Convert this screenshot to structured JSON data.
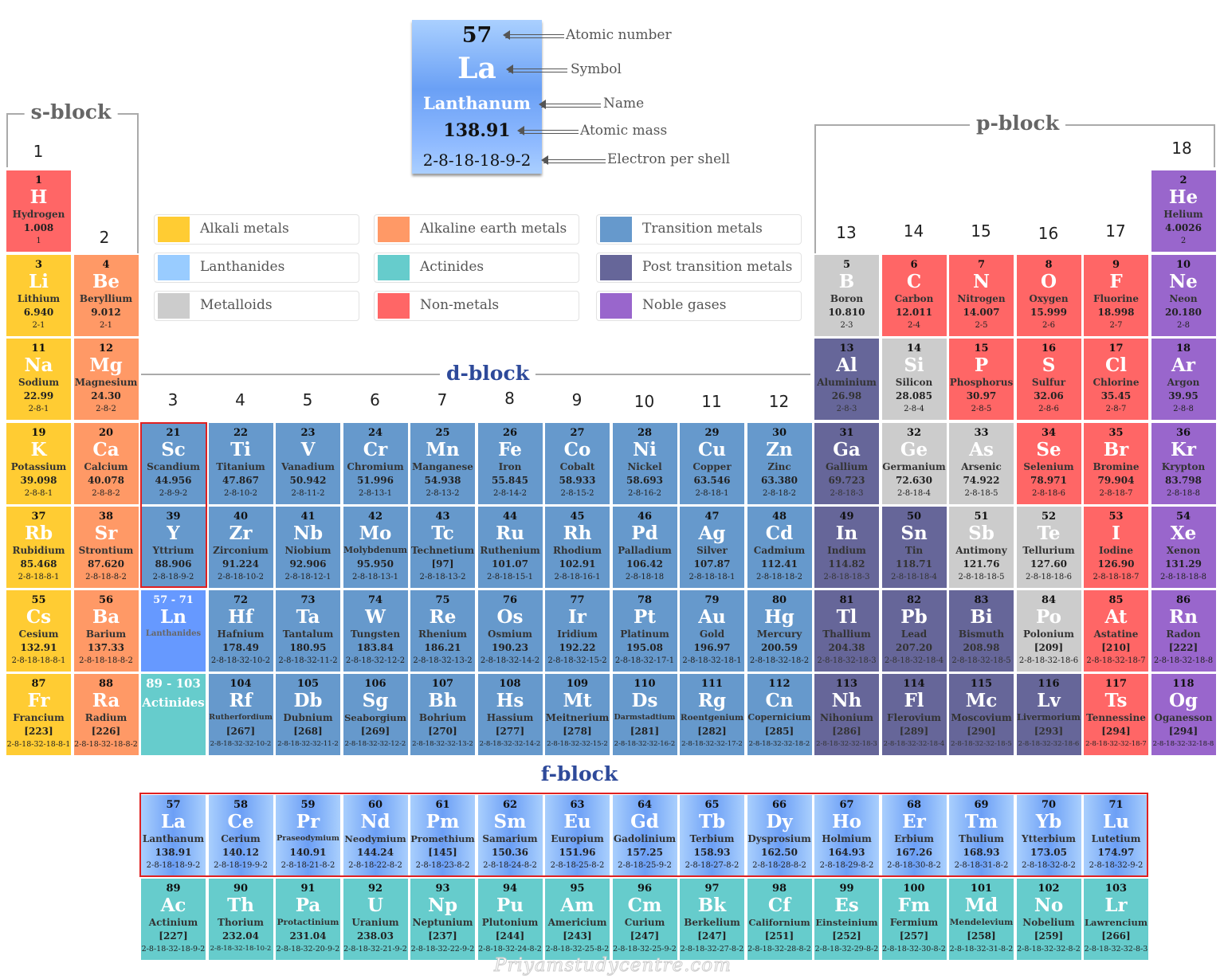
{
  "key": {
    "number": "57",
    "symbol": "La",
    "name": "Lanthanum",
    "mass": "138.91",
    "config": "2-8-18-18-9-2",
    "labels": {
      "number": "Atomic number",
      "symbol": "Symbol",
      "name": "Name",
      "mass": "Atomic mass",
      "config": "Electron per shell"
    }
  },
  "blocks": {
    "s": "s-block",
    "p": "p-block",
    "d": "d-block",
    "f": "f-block"
  },
  "groups": [
    "1",
    "2",
    "3",
    "4",
    "5",
    "6",
    "7",
    "8",
    "9",
    "10",
    "11",
    "12",
    "13",
    "14",
    "15",
    "16",
    "17",
    "18"
  ],
  "legend": [
    {
      "key": "ak",
      "label": "Alkali metals",
      "color": "#FFCC33"
    },
    {
      "key": "ae",
      "label": "Alkaline earth metals",
      "color": "#FF9966"
    },
    {
      "key": "tm",
      "label": "Transition metals",
      "color": "#6699CC"
    },
    {
      "key": "ln",
      "label": "Lanthanides",
      "color": "#99CCFF"
    },
    {
      "key": "an",
      "label": "Actinides",
      "color": "#66CCCC"
    },
    {
      "key": "pt",
      "label": "Post transition metals",
      "color": "#666699"
    },
    {
      "key": "md",
      "label": "Metalloids",
      "color": "#CCCCCC"
    },
    {
      "key": "nm",
      "label": "Non-metals",
      "color": "#FF6666"
    },
    {
      "key": "ng",
      "label": "Noble gases",
      "color": "#9966CC"
    }
  ],
  "placeholders": {
    "lanthanides": {
      "range": "57 - 71",
      "symbol": "Ln",
      "name": "Lanthanides",
      "color": "#6699FF"
    },
    "actinides": {
      "range": "89 - 103",
      "name": "Actinides",
      "color": "#66CCCC"
    }
  },
  "watermark": "Priyamstudycentre.com",
  "elements": [
    {
      "n": 1,
      "s": "H",
      "name": "Hydrogen",
      "m": "1.008",
      "e": "1",
      "cat": "nm"
    },
    {
      "n": 2,
      "s": "He",
      "name": "Helium",
      "m": "4.0026",
      "e": "2",
      "cat": "ng"
    },
    {
      "n": 3,
      "s": "Li",
      "name": "Lithium",
      "m": "6.940",
      "e": "2-1",
      "cat": "ak"
    },
    {
      "n": 4,
      "s": "Be",
      "name": "Beryllium",
      "m": "9.012",
      "e": "2-1",
      "cat": "ae"
    },
    {
      "n": 5,
      "s": "B",
      "name": "Boron",
      "m": "10.810",
      "e": "2-3",
      "cat": "md"
    },
    {
      "n": 6,
      "s": "C",
      "name": "Carbon",
      "m": "12.011",
      "e": "2-4",
      "cat": "nm"
    },
    {
      "n": 7,
      "s": "N",
      "name": "Nitrogen",
      "m": "14.007",
      "e": "2-5",
      "cat": "nm"
    },
    {
      "n": 8,
      "s": "O",
      "name": "Oxygen",
      "m": "15.999",
      "e": "2-6",
      "cat": "nm"
    },
    {
      "n": 9,
      "s": "F",
      "name": "Fluorine",
      "m": "18.998",
      "e": "2-7",
      "cat": "nm"
    },
    {
      "n": 10,
      "s": "Ne",
      "name": "Neon",
      "m": "20.180",
      "e": "2-8",
      "cat": "ng"
    },
    {
      "n": 11,
      "s": "Na",
      "name": "Sodium",
      "m": "22.99",
      "e": "2-8-1",
      "cat": "ak"
    },
    {
      "n": 12,
      "s": "Mg",
      "name": "Magnesium",
      "m": "24.30",
      "e": "2-8-2",
      "cat": "ae"
    },
    {
      "n": 13,
      "s": "Al",
      "name": "Aluminium",
      "m": "26.98",
      "e": "2-8-3",
      "cat": "pt"
    },
    {
      "n": 14,
      "s": "Si",
      "name": "Silicon",
      "m": "28.085",
      "e": "2-8-4",
      "cat": "md"
    },
    {
      "n": 15,
      "s": "P",
      "name": "Phosphorus",
      "m": "30.97",
      "e": "2-8-5",
      "cat": "nm"
    },
    {
      "n": 16,
      "s": "S",
      "name": "Sulfur",
      "m": "32.06",
      "e": "2-8-6",
      "cat": "nm"
    },
    {
      "n": 17,
      "s": "Cl",
      "name": "Chlorine",
      "m": "35.45",
      "e": "2-8-7",
      "cat": "nm"
    },
    {
      "n": 18,
      "s": "Ar",
      "name": "Argon",
      "m": "39.95",
      "e": "2-8-8",
      "cat": "ng"
    },
    {
      "n": 19,
      "s": "K",
      "name": "Potassium",
      "m": "39.098",
      "e": "2-8-8-1",
      "cat": "ak"
    },
    {
      "n": 20,
      "s": "Ca",
      "name": "Calcium",
      "m": "40.078",
      "e": "2-8-8-2",
      "cat": "ae"
    },
    {
      "n": 21,
      "s": "Sc",
      "name": "Scandium",
      "m": "44.956",
      "e": "2-8-9-2",
      "cat": "tm"
    },
    {
      "n": 22,
      "s": "Ti",
      "name": "Titanium",
      "m": "47.867",
      "e": "2-8-10-2",
      "cat": "tm"
    },
    {
      "n": 23,
      "s": "V",
      "name": "Vanadium",
      "m": "50.942",
      "e": "2-8-11-2",
      "cat": "tm"
    },
    {
      "n": 24,
      "s": "Cr",
      "name": "Chromium",
      "m": "51.996",
      "e": "2-8-13-1",
      "cat": "tm"
    },
    {
      "n": 25,
      "s": "Mn",
      "name": "Manganese",
      "m": "54.938",
      "e": "2-8-13-2",
      "cat": "tm"
    },
    {
      "n": 26,
      "s": "Fe",
      "name": "Iron",
      "m": "55.845",
      "e": "2-8-14-2",
      "cat": "tm"
    },
    {
      "n": 27,
      "s": "Co",
      "name": "Cobalt",
      "m": "58.933",
      "e": "2-8-15-2",
      "cat": "tm"
    },
    {
      "n": 28,
      "s": "Ni",
      "name": "Nickel",
      "m": "58.693",
      "e": "2-8-16-2",
      "cat": "tm"
    },
    {
      "n": 29,
      "s": "Cu",
      "name": "Copper",
      "m": "63.546",
      "e": "2-8-18-1",
      "cat": "tm"
    },
    {
      "n": 30,
      "s": "Zn",
      "name": "Zinc",
      "m": "63.380",
      "e": "2-8-18-2",
      "cat": "tm"
    },
    {
      "n": 31,
      "s": "Ga",
      "name": "Gallium",
      "m": "69.723",
      "e": "2-8-18-3",
      "cat": "pt"
    },
    {
      "n": 32,
      "s": "Ge",
      "name": "Germanium",
      "m": "72.630",
      "e": "2-8-18-4",
      "cat": "md"
    },
    {
      "n": 33,
      "s": "As",
      "name": "Arsenic",
      "m": "74.922",
      "e": "2-8-18-5",
      "cat": "md"
    },
    {
      "n": 34,
      "s": "Se",
      "name": "Selenium",
      "m": "78.971",
      "e": "2-8-18-6",
      "cat": "nm"
    },
    {
      "n": 35,
      "s": "Br",
      "name": "Bromine",
      "m": "79.904",
      "e": "2-8-18-7",
      "cat": "nm"
    },
    {
      "n": 36,
      "s": "Kr",
      "name": "Krypton",
      "m": "83.798",
      "e": "2-8-18-8",
      "cat": "ng"
    },
    {
      "n": 37,
      "s": "Rb",
      "name": "Rubidium",
      "m": "85.468",
      "e": "2-8-18-8-1",
      "cat": "ak"
    },
    {
      "n": 38,
      "s": "Sr",
      "name": "Strontium",
      "m": "87.620",
      "e": "2-8-18-8-2",
      "cat": "ae"
    },
    {
      "n": 39,
      "s": "Y",
      "name": "Yttrium",
      "m": "88.906",
      "e": "2-8-18-9-2",
      "cat": "tm"
    },
    {
      "n": 40,
      "s": "Zr",
      "name": "Zirconium",
      "m": "91.224",
      "e": "2-8-18-10-2",
      "cat": "tm"
    },
    {
      "n": 41,
      "s": "Nb",
      "name": "Niobium",
      "m": "92.906",
      "e": "2-8-18-12-1",
      "cat": "tm"
    },
    {
      "n": 42,
      "s": "Mo",
      "name": "Molybdenum",
      "m": "95.950",
      "e": "2-8-18-13-1",
      "cat": "tm"
    },
    {
      "n": 43,
      "s": "Tc",
      "name": "Technetium",
      "m": "[97]",
      "e": "2-8-18-13-2",
      "cat": "tm"
    },
    {
      "n": 44,
      "s": "Ru",
      "name": "Ruthenium",
      "m": "101.07",
      "e": "2-8-18-15-1",
      "cat": "tm"
    },
    {
      "n": 45,
      "s": "Rh",
      "name": "Rhodium",
      "m": "102.91",
      "e": "2-8-18-16-1",
      "cat": "tm"
    },
    {
      "n": 46,
      "s": "Pd",
      "name": "Palladium",
      "m": "106.42",
      "e": "2-8-18-18",
      "cat": "tm"
    },
    {
      "n": 47,
      "s": "Ag",
      "name": "Silver",
      "m": "107.87",
      "e": "2-8-18-18-1",
      "cat": "tm"
    },
    {
      "n": 48,
      "s": "Cd",
      "name": "Cadmium",
      "m": "112.41",
      "e": "2-8-18-18-2",
      "cat": "tm"
    },
    {
      "n": 49,
      "s": "In",
      "name": "Indium",
      "m": "114.82",
      "e": "2-8-18-18-3",
      "cat": "pt"
    },
    {
      "n": 50,
      "s": "Sn",
      "name": "Tin",
      "m": "118.71",
      "e": "2-8-18-18-4",
      "cat": "pt"
    },
    {
      "n": 51,
      "s": "Sb",
      "name": "Antimony",
      "m": "121.76",
      "e": "2-8-18-18-5",
      "cat": "md"
    },
    {
      "n": 52,
      "s": "Te",
      "name": "Tellurium",
      "m": "127.60",
      "e": "2-8-18-18-6",
      "cat": "md"
    },
    {
      "n": 53,
      "s": "I",
      "name": "Iodine",
      "m": "126.90",
      "e": "2-8-18-18-7",
      "cat": "nm"
    },
    {
      "n": 54,
      "s": "Xe",
      "name": "Xenon",
      "m": "131.29",
      "e": "2-8-18-18-8",
      "cat": "ng"
    },
    {
      "n": 55,
      "s": "Cs",
      "name": "Cesium",
      "m": "132.91",
      "e": "2-8-18-18-8-1",
      "cat": "ak"
    },
    {
      "n": 56,
      "s": "Ba",
      "name": "Barium",
      "m": "137.33",
      "e": "2-8-18-18-8-2",
      "cat": "ae"
    },
    {
      "n": 57,
      "s": "La",
      "name": "Lanthanum",
      "m": "138.91",
      "e": "2-8-18-18-9-2",
      "cat": "ln"
    },
    {
      "n": 58,
      "s": "Ce",
      "name": "Cerium",
      "m": "140.12",
      "e": "2-8-18-19-9-2",
      "cat": "ln"
    },
    {
      "n": 59,
      "s": "Pr",
      "name": "Praseodymium",
      "m": "140.91",
      "e": "2-8-18-21-8-2",
      "cat": "ln"
    },
    {
      "n": 60,
      "s": "Nd",
      "name": "Neodymium",
      "m": "144.24",
      "e": "2-8-18-22-8-2",
      "cat": "ln"
    },
    {
      "n": 61,
      "s": "Pm",
      "name": "Promethium",
      "m": "[145]",
      "e": "2-8-18-23-8-2",
      "cat": "ln"
    },
    {
      "n": 62,
      "s": "Sm",
      "name": "Samarium",
      "m": "150.36",
      "e": "2-8-18-24-8-2",
      "cat": "ln"
    },
    {
      "n": 63,
      "s": "Eu",
      "name": "Europium",
      "m": "151.96",
      "e": "2-8-18-25-8-2",
      "cat": "ln"
    },
    {
      "n": 64,
      "s": "Gd",
      "name": "Gadolinium",
      "m": "157.25",
      "e": "2-8-18-25-9-2",
      "cat": "ln"
    },
    {
      "n": 65,
      "s": "Tb",
      "name": "Terbium",
      "m": "158.93",
      "e": "2-8-18-27-8-2",
      "cat": "ln"
    },
    {
      "n": 66,
      "s": "Dy",
      "name": "Dysprosium",
      "m": "162.50",
      "e": "2-8-18-28-8-2",
      "cat": "ln"
    },
    {
      "n": 67,
      "s": "Ho",
      "name": "Holmium",
      "m": "164.93",
      "e": "2-8-18-29-8-2",
      "cat": "ln"
    },
    {
      "n": 68,
      "s": "Er",
      "name": "Erbium",
      "m": "167.26",
      "e": "2-8-18-30-8-2",
      "cat": "ln"
    },
    {
      "n": 69,
      "s": "Tm",
      "name": "Thulium",
      "m": "168.93",
      "e": "2-8-18-31-8-2",
      "cat": "ln"
    },
    {
      "n": 70,
      "s": "Yb",
      "name": "Ytterbium",
      "m": "173.05",
      "e": "2-8-18-32-8-2",
      "cat": "ln"
    },
    {
      "n": 71,
      "s": "Lu",
      "name": "Lutetium",
      "m": "174.97",
      "e": "2-8-18-32-9-2",
      "cat": "ln"
    },
    {
      "n": 72,
      "s": "Hf",
      "name": "Hafnium",
      "m": "178.49",
      "e": "2-8-18-32-10-2",
      "cat": "tm"
    },
    {
      "n": 73,
      "s": "Ta",
      "name": "Tantalum",
      "m": "180.95",
      "e": "2-8-18-32-11-2",
      "cat": "tm"
    },
    {
      "n": 74,
      "s": "W",
      "name": "Tungsten",
      "m": "183.84",
      "e": "2-8-18-32-12-2",
      "cat": "tm"
    },
    {
      "n": 75,
      "s": "Re",
      "name": "Rhenium",
      "m": "186.21",
      "e": "2-8-18-32-13-2",
      "cat": "tm"
    },
    {
      "n": 76,
      "s": "Os",
      "name": "Osmium",
      "m": "190.23",
      "e": "2-8-18-32-14-2",
      "cat": "tm"
    },
    {
      "n": 77,
      "s": "Ir",
      "name": "Iridium",
      "m": "192.22",
      "e": "2-8-18-32-15-2",
      "cat": "tm"
    },
    {
      "n": 78,
      "s": "Pt",
      "name": "Platinum",
      "m": "195.08",
      "e": "2-8-18-32-17-1",
      "cat": "tm"
    },
    {
      "n": 79,
      "s": "Au",
      "name": "Gold",
      "m": "196.97",
      "e": "2-8-18-32-18-1",
      "cat": "tm"
    },
    {
      "n": 80,
      "s": "Hg",
      "name": "Mercury",
      "m": "200.59",
      "e": "2-8-18-32-18-2",
      "cat": "tm"
    },
    {
      "n": 81,
      "s": "Tl",
      "name": "Thallium",
      "m": "204.38",
      "e": "2-8-18-32-18-3",
      "cat": "pt"
    },
    {
      "n": 82,
      "s": "Pb",
      "name": "Lead",
      "m": "207.20",
      "e": "2-8-18-32-18-4",
      "cat": "pt"
    },
    {
      "n": 83,
      "s": "Bi",
      "name": "Bismuth",
      "m": "208.98",
      "e": "2-8-18-32-18-5",
      "cat": "pt"
    },
    {
      "n": 84,
      "s": "Po",
      "name": "Polonium",
      "m": "[209]",
      "e": "2-8-18-32-18-6",
      "cat": "md"
    },
    {
      "n": 85,
      "s": "At",
      "name": "Astatine",
      "m": "[210]",
      "e": "2-8-18-32-18-7",
      "cat": "nm"
    },
    {
      "n": 86,
      "s": "Rn",
      "name": "Radon",
      "m": "[222]",
      "e": "2-8-18-32-18-8",
      "cat": "ng"
    },
    {
      "n": 87,
      "s": "Fr",
      "name": "Francium",
      "m": "[223]",
      "e": "2-8-18-32-18-8-1",
      "cat": "ak"
    },
    {
      "n": 88,
      "s": "Ra",
      "name": "Radium",
      "m": "[226]",
      "e": "2-8-18-32-18-8-2",
      "cat": "ae"
    },
    {
      "n": 89,
      "s": "Ac",
      "name": "Actinium",
      "m": "[227]",
      "e": "2-8-18-32-18-9-2",
      "cat": "an"
    },
    {
      "n": 90,
      "s": "Th",
      "name": "Thorium",
      "m": "232.04",
      "e": "2-8-18-32-18-10-2",
      "cat": "an"
    },
    {
      "n": 91,
      "s": "Pa",
      "name": "Protactinium",
      "m": "231.04",
      "e": "2-8-18-32-20-9-2",
      "cat": "an"
    },
    {
      "n": 92,
      "s": "U",
      "name": "Uranium",
      "m": "238.03",
      "e": "2-8-18-32-21-9-2",
      "cat": "an"
    },
    {
      "n": 93,
      "s": "Np",
      "name": "Neptunium",
      "m": "[237]",
      "e": "2-8-18-32-22-9-2",
      "cat": "an"
    },
    {
      "n": 94,
      "s": "Pu",
      "name": "Plutonium",
      "m": "[244]",
      "e": "2-8-18-32-24-8-2",
      "cat": "an"
    },
    {
      "n": 95,
      "s": "Am",
      "name": "Americium",
      "m": "[243]",
      "e": "2-8-18-32-25-8-2",
      "cat": "an"
    },
    {
      "n": 96,
      "s": "Cm",
      "name": "Curium",
      "m": "[247]",
      "e": "2-8-18-32-25-9-2",
      "cat": "an"
    },
    {
      "n": 97,
      "s": "Bk",
      "name": "Berkelium",
      "m": "[247]",
      "e": "2-8-18-32-27-8-2",
      "cat": "an"
    },
    {
      "n": 98,
      "s": "Cf",
      "name": "Californium",
      "m": "[251]",
      "e": "2-8-18-32-28-8-2",
      "cat": "an"
    },
    {
      "n": 99,
      "s": "Es",
      "name": "Einsteinium",
      "m": "[252]",
      "e": "2-8-18-32-29-8-2",
      "cat": "an"
    },
    {
      "n": 100,
      "s": "Fm",
      "name": "Fermium",
      "m": "[257]",
      "e": "2-8-18-32-30-8-2",
      "cat": "an"
    },
    {
      "n": 101,
      "s": "Md",
      "name": "Mendelevium",
      "m": "[258]",
      "e": "2-8-18-32-31-8-2",
      "cat": "an"
    },
    {
      "n": 102,
      "s": "No",
      "name": "Nobelium",
      "m": "[259]",
      "e": "2-8-18-32-32-8-2",
      "cat": "an"
    },
    {
      "n": 103,
      "s": "Lr",
      "name": "Lawrencium",
      "m": "[266]",
      "e": "2-8-18-32-32-8-3",
      "cat": "an"
    },
    {
      "n": 104,
      "s": "Rf",
      "name": "Rutherfordium",
      "m": "[267]",
      "e": "2-8-18-32-32-10-2",
      "cat": "tm"
    },
    {
      "n": 105,
      "s": "Db",
      "name": "Dubnium",
      "m": "[268]",
      "e": "2-8-18-32-32-11-2",
      "cat": "tm"
    },
    {
      "n": 106,
      "s": "Sg",
      "name": "Seaborgium",
      "m": "[269]",
      "e": "2-8-18-32-32-12-2",
      "cat": "tm"
    },
    {
      "n": 107,
      "s": "Bh",
      "name": "Bohrium",
      "m": "[270]",
      "e": "2-8-18-32-32-13-2",
      "cat": "tm"
    },
    {
      "n": 108,
      "s": "Hs",
      "name": "Hassium",
      "m": "[277]",
      "e": "2-8-18-32-32-14-2",
      "cat": "tm"
    },
    {
      "n": 109,
      "s": "Mt",
      "name": "Meitnerium",
      "m": "[278]",
      "e": "2-8-18-32-32-15-2",
      "cat": "tm"
    },
    {
      "n": 110,
      "s": "Ds",
      "name": "Darmstadtium",
      "m": "[281]",
      "e": "2-8-18-32-32-16-2",
      "cat": "tm"
    },
    {
      "n": 111,
      "s": "Rg",
      "name": "Roentgenium",
      "m": "[282]",
      "e": "2-8-18-32-32-17-2",
      "cat": "tm"
    },
    {
      "n": 112,
      "s": "Cn",
      "name": "Copernicium",
      "m": "[285]",
      "e": "2-8-18-32-32-18-2",
      "cat": "tm"
    },
    {
      "n": 113,
      "s": "Nh",
      "name": "Nihonium",
      "m": "[286]",
      "e": "2-8-18-32-32-18-3",
      "cat": "pt"
    },
    {
      "n": 114,
      "s": "Fl",
      "name": "Flerovium",
      "m": "[289]",
      "e": "2-8-18-32-32-18-4",
      "cat": "pt"
    },
    {
      "n": 115,
      "s": "Mc",
      "name": "Moscovium",
      "m": "[290]",
      "e": "2-8-18-32-32-18-5",
      "cat": "pt"
    },
    {
      "n": 116,
      "s": "Lv",
      "name": "Livermorium",
      "m": "[293]",
      "e": "2-8-18-32-32-18-6",
      "cat": "pt"
    },
    {
      "n": 117,
      "s": "Ts",
      "name": "Tennessine",
      "m": "[294]",
      "e": "2-8-18-32-32-18-7",
      "cat": "nm"
    },
    {
      "n": 118,
      "s": "Og",
      "name": "Oganesson",
      "m": "[294]",
      "e": "2-8-18-32-32-18-8",
      "cat": "ng"
    }
  ]
}
